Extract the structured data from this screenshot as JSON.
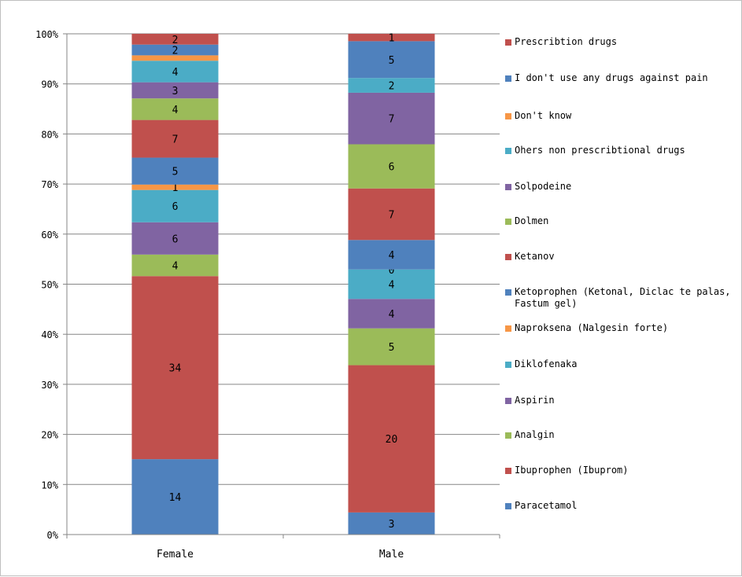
{
  "chart_data": {
    "type": "bar",
    "stacked": true,
    "normalized": true,
    "categories": [
      "Female",
      "Male"
    ],
    "series": [
      {
        "name": "Paracetamol",
        "color": "#4F81BD",
        "values": [
          14,
          3
        ]
      },
      {
        "name": "Ibuprophen (Ibuprom)",
        "color": "#C0504D",
        "values": [
          34,
          20
        ]
      },
      {
        "name": "Analgin",
        "color": "#9BBB59",
        "values": [
          4,
          5
        ]
      },
      {
        "name": "Aspirin",
        "color": "#8064A2",
        "values": [
          6,
          4
        ]
      },
      {
        "name": "Diklofenaka",
        "color": "#4BACC6",
        "values": [
          6,
          4
        ]
      },
      {
        "name": "Naproksena (Nalgesin forte)",
        "color": "#F79646",
        "values": [
          1,
          0
        ]
      },
      {
        "name": "Ketoprophen (Ketonal, Diclac te palas, Fastum gel)",
        "color": "#4F81BD",
        "values": [
          5,
          4
        ]
      },
      {
        "name": "Ketanov",
        "color": "#C0504D",
        "values": [
          7,
          7
        ]
      },
      {
        "name": "Dolmen",
        "color": "#9BBB59",
        "values": [
          4,
          6
        ]
      },
      {
        "name": "Solpodeine",
        "color": "#8064A2",
        "values": [
          3,
          7
        ]
      },
      {
        "name": "Ohers non prescribtional drugs",
        "color": "#4BACC6",
        "values": [
          4,
          2
        ]
      },
      {
        "name": "Don't know",
        "color": "#F79646",
        "values": [
          1,
          0
        ]
      },
      {
        "name": "I don't use any drugs against pain",
        "color": "#4F81BD",
        "values": [
          2,
          5
        ]
      },
      {
        "name": "Prescribtion drugs",
        "color": "#C0504D",
        "values": [
          2,
          1
        ]
      }
    ],
    "point_labels": [
      [
        "14",
        "34",
        "4",
        "6",
        "6",
        "1",
        "5",
        "7",
        "4",
        "3",
        "4",
        "",
        "2",
        "2"
      ],
      [
        "3",
        "20",
        "5",
        "4",
        "4",
        "0",
        "4",
        "7",
        "6",
        "7",
        "2",
        "",
        "5",
        "1"
      ]
    ],
    "y_ticks": [
      "0%",
      "10%",
      "20%",
      "30%",
      "40%",
      "50%",
      "60%",
      "70%",
      "80%",
      "90%",
      "100%"
    ],
    "ylim": [
      0,
      100
    ],
    "legend_position": "right",
    "legend_order": "reverse",
    "grid": true
  }
}
